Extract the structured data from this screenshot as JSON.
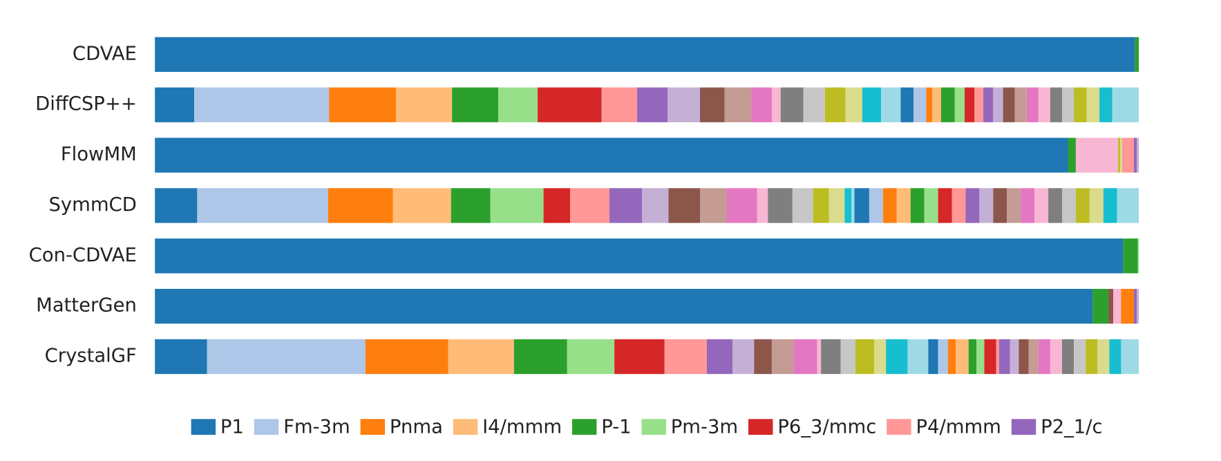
{
  "chart_data": {
    "type": "stacked_barh",
    "categories": [
      "CDVAE",
      "DiffCSP++",
      "FlowMM",
      "SymmCD",
      "Con-CDVAE",
      "MatterGen",
      "CrystalGF"
    ],
    "xlim": [
      0,
      100
    ],
    "legend": "bottom",
    "series": [
      {
        "name": "P1",
        "color": "#1f77b4",
        "values": [
          99.6,
          4.0,
          92.8,
          4.3,
          98.4,
          95.3,
          5.3
        ]
      },
      {
        "name": "Fm-3m",
        "color": "#aec7e8",
        "values": [
          0,
          13.7,
          0,
          13.3,
          0,
          0,
          16.1
        ]
      },
      {
        "name": "Pnma",
        "color": "#ff7f0e",
        "values": [
          0,
          6.8,
          0,
          6.6,
          0,
          0,
          8.4
        ]
      },
      {
        "name": "I4/mmm",
        "color": "#ffbb78",
        "values": [
          0,
          5.7,
          0,
          5.9,
          0,
          0,
          6.7
        ]
      },
      {
        "name": "P-1",
        "color": "#2ca02c",
        "values": [
          0.4,
          4.7,
          0.8,
          4.0,
          1.5,
          1.6,
          5.4
        ]
      },
      {
        "name": "Pm-3m",
        "color": "#98df8a",
        "values": [
          0,
          4.0,
          0,
          5.4,
          0.1,
          0,
          4.8
        ]
      },
      {
        "name": "P6_3/mmc",
        "color": "#d62728",
        "values": [
          0,
          6.5,
          0,
          2.7,
          0,
          0,
          5.1
        ]
      },
      {
        "name": "P4/mmm",
        "color": "#ff9896",
        "values": [
          0,
          3.6,
          0,
          4.0,
          0,
          0,
          4.3
        ]
      },
      {
        "name": "P2_1/c",
        "color": "#9467bd",
        "values": [
          0,
          3.1,
          0,
          3.3,
          0,
          0,
          2.6
        ]
      },
      {
        "color": "#c5b0d5",
        "values": [
          0,
          3.3,
          0,
          2.7,
          0,
          0,
          2.2
        ]
      },
      {
        "color": "#8c564b",
        "values": [
          0,
          2.5,
          0,
          3.2,
          0,
          0.5,
          1.8
        ]
      },
      {
        "color": "#c49c94",
        "values": [
          0,
          2.7,
          0,
          2.7,
          0,
          0,
          2.2
        ]
      },
      {
        "color": "#e377c2",
        "values": [
          0,
          2.1,
          0,
          3.1,
          0,
          0,
          2.4
        ]
      },
      {
        "color": "#f7b6d2",
        "values": [
          0,
          0.9,
          4.3,
          1.1,
          0,
          0.8,
          0.4
        ]
      },
      {
        "color": "#7f7f7f",
        "values": [
          0,
          2.3,
          0,
          2.5,
          0,
          0,
          2.0
        ]
      },
      {
        "color": "#c7c7c7",
        "values": [
          0,
          2.2,
          0,
          2.1,
          0,
          0,
          1.5
        ]
      },
      {
        "color": "#bcbd22",
        "values": [
          0,
          2.1,
          0.2,
          1.6,
          0,
          0,
          1.9
        ]
      },
      {
        "color": "#dbdb8d",
        "values": [
          0,
          1.7,
          0.2,
          1.6,
          0,
          0,
          1.2
        ]
      },
      {
        "color": "#17becf",
        "values": [
          0,
          1.9,
          0,
          0.7,
          0,
          0,
          2.2
        ]
      },
      {
        "color": "#9edae5",
        "values": [
          0,
          2.0,
          0,
          0.3,
          0,
          0,
          2.1
        ]
      },
      {
        "color": "#1f77b4",
        "values": [
          0,
          1.3,
          0,
          1.5,
          0,
          0,
          1.0
        ]
      },
      {
        "color": "#aec7e8",
        "values": [
          0,
          1.3,
          0,
          1.4,
          0,
          0,
          1.0
        ]
      },
      {
        "color": "#ff7f0e",
        "values": [
          0,
          0.6,
          0,
          1.4,
          0,
          1.3,
          0.8
        ]
      },
      {
        "color": "#ffbb78",
        "values": [
          0,
          0.9,
          0,
          1.4,
          0,
          0,
          1.3
        ]
      },
      {
        "color": "#2ca02c",
        "values": [
          0,
          1.4,
          0,
          1.4,
          0,
          0,
          0.8
        ]
      },
      {
        "color": "#98df8a",
        "values": [
          0,
          1.0,
          0,
          1.4,
          0,
          0,
          0.8
        ]
      },
      {
        "color": "#d62728",
        "values": [
          0,
          1.0,
          0,
          1.4,
          0,
          0,
          1.2
        ]
      },
      {
        "color": "#ff9896",
        "values": [
          0,
          0.9,
          1.2,
          1.4,
          0,
          0,
          0.3
        ]
      },
      {
        "color": "#9467bd",
        "values": [
          0,
          1.0,
          0.3,
          1.4,
          0,
          0.3,
          1.1
        ]
      },
      {
        "color": "#c5b0d5",
        "values": [
          0,
          1.0,
          0.2,
          1.4,
          0,
          0.2,
          0.9
        ]
      },
      {
        "color": "#8c564b",
        "values": [
          0,
          1.2,
          0,
          1.4,
          0,
          0,
          1.0
        ]
      },
      {
        "color": "#c49c94",
        "values": [
          0,
          1.2,
          0,
          1.4,
          0,
          0,
          1.0
        ]
      },
      {
        "color": "#e377c2",
        "values": [
          0,
          1.2,
          0,
          1.4,
          0,
          0,
          1.2
        ]
      },
      {
        "color": "#f7b6d2",
        "values": [
          0,
          1.2,
          0,
          1.4,
          0,
          0,
          1.2
        ]
      },
      {
        "color": "#7f7f7f",
        "values": [
          0,
          1.2,
          0,
          1.4,
          0,
          0,
          1.2
        ]
      },
      {
        "color": "#c7c7c7",
        "values": [
          0,
          1.2,
          0,
          1.4,
          0,
          0,
          1.2
        ]
      },
      {
        "color": "#bcbd22",
        "values": [
          0,
          1.3,
          0,
          1.4,
          0,
          0,
          1.2
        ]
      },
      {
        "color": "#dbdb8d",
        "values": [
          0,
          1.3,
          0,
          1.4,
          0,
          0,
          1.2
        ]
      },
      {
        "color": "#17becf",
        "values": [
          0,
          1.3,
          0,
          1.4,
          0,
          0,
          1.2
        ]
      },
      {
        "color": "#9edae5",
        "values": [
          0,
          2.7,
          0,
          2.2,
          0,
          0,
          1.8
        ]
      }
    ]
  }
}
